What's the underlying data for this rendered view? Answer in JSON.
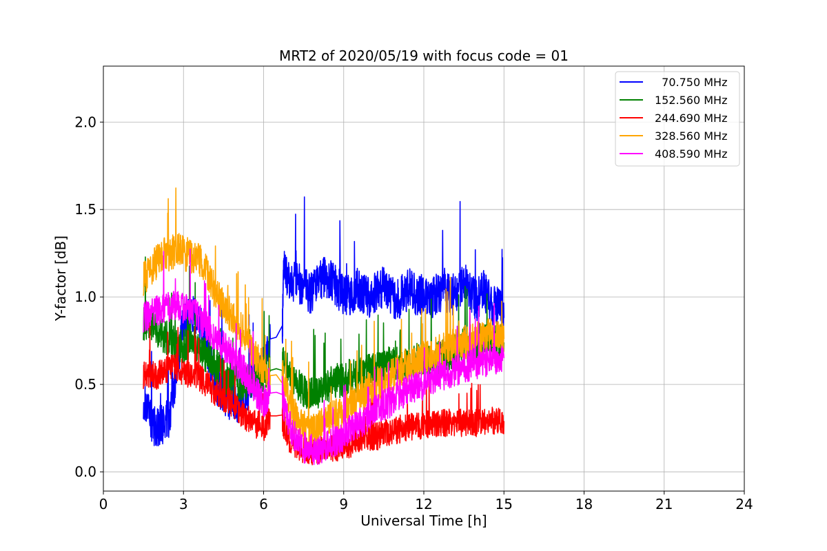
{
  "chart_data": {
    "type": "line",
    "title": "MRT2 of 2020/05/19 with focus code = 01",
    "xlabel": "Universal Time [h]",
    "ylabel": "Y-factor [dB]",
    "xlim": [
      0,
      24
    ],
    "ylim": [
      -0.11,
      2.32
    ],
    "xticks": [
      0,
      3,
      6,
      9,
      12,
      15,
      18,
      21,
      24
    ],
    "xtick_labels": [
      "0",
      "3",
      "6",
      "9",
      "12",
      "15",
      "18",
      "21",
      "24"
    ],
    "yticks": [
      0.0,
      0.5,
      1.0,
      1.5,
      2.0
    ],
    "ytick_labels": [
      "0.0",
      "0.5",
      "1.0",
      "1.5",
      "2.0"
    ],
    "grid": true,
    "legend_position": "top-right",
    "series": [
      {
        "name": "70.750 MHz",
        "legend_label": "  70.750 MHz",
        "color": "#0000ff",
        "x": [
          1.5,
          1.75,
          2.0,
          2.25,
          2.5,
          2.75,
          3.0,
          3.25,
          3.5,
          3.75,
          4.0,
          4.25,
          4.5,
          4.75,
          5.0,
          5.25,
          5.5,
          5.75,
          6.0,
          6.25,
          6.7,
          6.75,
          7.0,
          7.25,
          7.5,
          7.75,
          8.0,
          8.25,
          8.5,
          8.75,
          9.0,
          9.25,
          9.5,
          9.75,
          10.0,
          10.25,
          10.5,
          10.75,
          11.0,
          11.25,
          11.5,
          11.75,
          12.0,
          12.25,
          12.5,
          12.75,
          13.0,
          13.25,
          13.5,
          13.75,
          14.0,
          14.25,
          14.5,
          14.75,
          15.0
        ],
        "y": [
          0.42,
          0.3,
          0.25,
          0.28,
          0.3,
          0.6,
          0.85,
          0.9,
          0.88,
          0.8,
          0.62,
          0.5,
          0.45,
          0.4,
          0.38,
          0.42,
          0.5,
          0.58,
          0.62,
          0.76,
          0.78,
          1.15,
          1.08,
          1.1,
          1.05,
          1.02,
          1.08,
          1.12,
          1.1,
          1.05,
          1.02,
          1.0,
          1.05,
          1.02,
          1.0,
          1.04,
          1.06,
          1.0,
          0.98,
          1.02,
          1.05,
          1.0,
          1.03,
          0.98,
          1.02,
          1.05,
          1.0,
          1.04,
          1.08,
          1.02,
          0.98,
          1.05,
          0.96,
          0.95,
          0.88
        ],
        "amp": 0.12
      },
      {
        "name": "152.560 MHz",
        "legend_label": "152.560 MHz",
        "color": "#008000",
        "x": [
          1.5,
          1.75,
          2.0,
          2.25,
          2.5,
          2.75,
          3.0,
          3.25,
          3.5,
          3.75,
          4.0,
          4.25,
          4.5,
          4.75,
          5.0,
          5.25,
          5.5,
          5.75,
          6.0,
          6.25,
          6.7,
          6.75,
          7.0,
          7.25,
          7.5,
          7.75,
          8.0,
          8.25,
          8.5,
          8.75,
          9.0,
          9.25,
          9.5,
          9.75,
          10.0,
          10.25,
          10.5,
          10.75,
          11.0,
          11.25,
          11.5,
          11.75,
          12.0,
          12.25,
          12.5,
          12.75,
          13.0,
          13.25,
          13.5,
          13.75,
          14.0,
          14.25,
          14.5,
          14.75,
          15.0
        ],
        "y": [
          0.85,
          0.85,
          0.82,
          0.78,
          0.75,
          0.72,
          0.72,
          0.75,
          0.72,
          0.68,
          0.65,
          0.6,
          0.55,
          0.52,
          0.5,
          0.5,
          0.52,
          0.55,
          0.56,
          0.58,
          0.6,
          0.62,
          0.55,
          0.5,
          0.45,
          0.44,
          0.45,
          0.48,
          0.5,
          0.52,
          0.52,
          0.55,
          0.55,
          0.56,
          0.58,
          0.6,
          0.6,
          0.62,
          0.62,
          0.6,
          0.62,
          0.64,
          0.65,
          0.62,
          0.65,
          0.66,
          0.68,
          0.7,
          0.72,
          0.7,
          0.72,
          0.74,
          0.75,
          0.75,
          0.74
        ],
        "amp": 0.1
      },
      {
        "name": "244.690 MHz",
        "legend_label": "244.690 MHz",
        "color": "#ff0000",
        "x": [
          1.5,
          1.75,
          2.0,
          2.25,
          2.5,
          2.75,
          3.0,
          3.25,
          3.5,
          3.75,
          4.0,
          4.25,
          4.5,
          4.75,
          5.0,
          5.25,
          5.5,
          5.75,
          6.0,
          6.25,
          6.7,
          6.75,
          7.0,
          7.25,
          7.5,
          7.75,
          8.0,
          8.25,
          8.5,
          8.75,
          9.0,
          9.25,
          9.5,
          9.75,
          10.0,
          10.25,
          10.5,
          10.75,
          11.0,
          11.25,
          11.5,
          11.75,
          12.0,
          12.25,
          12.5,
          12.75,
          13.0,
          13.25,
          13.5,
          13.75,
          14.0,
          14.25,
          14.5,
          14.75,
          15.0
        ],
        "y": [
          0.55,
          0.56,
          0.55,
          0.57,
          0.6,
          0.6,
          0.57,
          0.56,
          0.55,
          0.52,
          0.48,
          0.45,
          0.42,
          0.4,
          0.36,
          0.32,
          0.3,
          0.27,
          0.25,
          0.32,
          0.32,
          0.25,
          0.18,
          0.14,
          0.12,
          0.12,
          0.12,
          0.13,
          0.14,
          0.14,
          0.15,
          0.16,
          0.18,
          0.2,
          0.2,
          0.2,
          0.22,
          0.23,
          0.24,
          0.25,
          0.26,
          0.26,
          0.27,
          0.27,
          0.28,
          0.28,
          0.28,
          0.28,
          0.28,
          0.28,
          0.28,
          0.29,
          0.29,
          0.29,
          0.29
        ],
        "amp": 0.08
      },
      {
        "name": "328.560 MHz",
        "legend_label": "328.560 MHz",
        "color": "#ffa500",
        "x": [
          1.5,
          1.75,
          2.0,
          2.25,
          2.5,
          2.75,
          3.0,
          3.25,
          3.5,
          3.75,
          4.0,
          4.25,
          4.5,
          4.75,
          5.0,
          5.25,
          5.5,
          5.75,
          6.0,
          6.25,
          6.7,
          6.75,
          7.0,
          7.25,
          7.5,
          7.75,
          8.0,
          8.25,
          8.5,
          8.75,
          9.0,
          9.25,
          9.5,
          9.75,
          10.0,
          10.25,
          10.5,
          10.75,
          11.0,
          11.25,
          11.5,
          11.75,
          12.0,
          12.25,
          12.5,
          12.75,
          13.0,
          13.25,
          13.5,
          13.75,
          14.0,
          14.25,
          14.5,
          14.75,
          15.0
        ],
        "y": [
          1.1,
          1.15,
          1.2,
          1.24,
          1.25,
          1.27,
          1.25,
          1.24,
          1.22,
          1.18,
          1.1,
          1.0,
          0.95,
          0.9,
          0.85,
          0.8,
          0.72,
          0.65,
          0.58,
          0.55,
          0.56,
          0.5,
          0.38,
          0.3,
          0.25,
          0.22,
          0.24,
          0.28,
          0.3,
          0.32,
          0.35,
          0.38,
          0.42,
          0.45,
          0.48,
          0.5,
          0.52,
          0.55,
          0.58,
          0.6,
          0.62,
          0.63,
          0.65,
          0.66,
          0.68,
          0.7,
          0.72,
          0.72,
          0.74,
          0.75,
          0.76,
          0.77,
          0.78,
          0.78,
          0.76
        ],
        "amp": 0.1
      },
      {
        "name": "408.590 MHz",
        "legend_label": "408.590 MHz",
        "color": "#ff00ff",
        "x": [
          1.5,
          1.75,
          2.0,
          2.25,
          2.5,
          2.75,
          3.0,
          3.25,
          3.5,
          3.75,
          4.0,
          4.25,
          4.5,
          4.75,
          5.0,
          5.25,
          5.5,
          5.75,
          6.0,
          6.25,
          6.7,
          6.75,
          7.0,
          7.25,
          7.5,
          7.75,
          8.0,
          8.25,
          8.5,
          8.75,
          9.0,
          9.25,
          9.5,
          9.75,
          10.0,
          10.25,
          10.5,
          10.75,
          11.0,
          11.25,
          11.5,
          11.75,
          12.0,
          12.25,
          12.5,
          12.75,
          13.0,
          13.25,
          13.5,
          13.75,
          14.0,
          14.25,
          14.5,
          14.75,
          15.0
        ],
        "y": [
          0.88,
          0.9,
          0.92,
          0.94,
          0.95,
          0.95,
          0.93,
          0.92,
          0.9,
          0.85,
          0.8,
          0.75,
          0.72,
          0.68,
          0.62,
          0.58,
          0.52,
          0.45,
          0.4,
          0.45,
          0.46,
          0.38,
          0.25,
          0.18,
          0.14,
          0.12,
          0.12,
          0.14,
          0.16,
          0.18,
          0.2,
          0.24,
          0.27,
          0.3,
          0.33,
          0.36,
          0.38,
          0.4,
          0.43,
          0.45,
          0.47,
          0.49,
          0.5,
          0.52,
          0.54,
          0.55,
          0.57,
          0.58,
          0.6,
          0.61,
          0.62,
          0.63,
          0.64,
          0.64,
          0.65
        ],
        "amp": 0.09
      }
    ]
  }
}
